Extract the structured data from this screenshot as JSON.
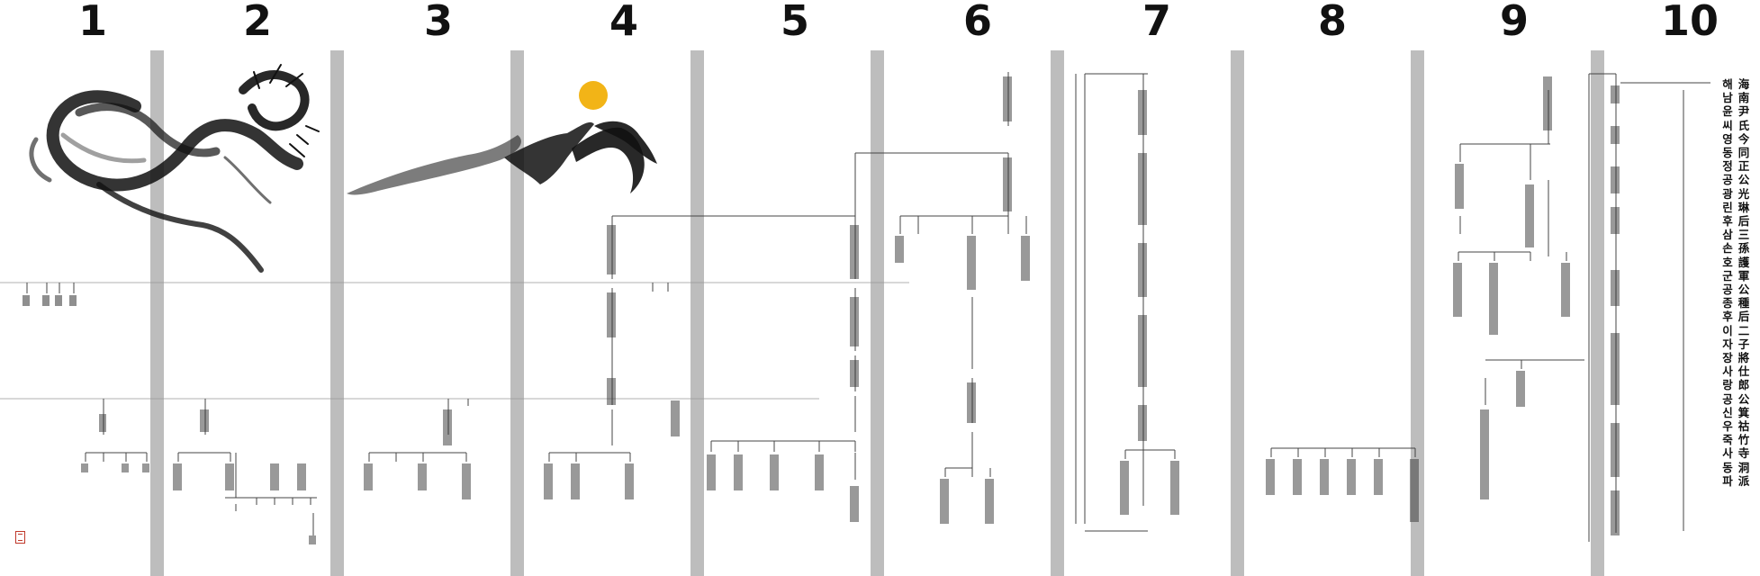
{
  "page": {
    "panel_numbers": [
      "1",
      "2",
      "3",
      "4",
      "5",
      "6",
      "7",
      "8",
      "9",
      "10"
    ],
    "title": {
      "line1": "海南尹氏 今同正公 光琳 后 三孫 護軍公 種 后 二子 將仕郎公 箕祜 竹寺 洞派",
      "line2": "해남윤씨 영동정공 광린 후 삼손 호군공 종 후 이자 장사랑공 신우 죽사동파"
    },
    "seal_icon": "red-seal-stamp",
    "art": {
      "dragon_icon": "ink-dragon",
      "mountain_icon": "ink-mountain",
      "sun_icon": "yellow-sun"
    },
    "colors": {
      "divider": "#bdbdbd",
      "sun": "#f2b417",
      "seal": "#c0392b",
      "ink": "#111111"
    }
  }
}
